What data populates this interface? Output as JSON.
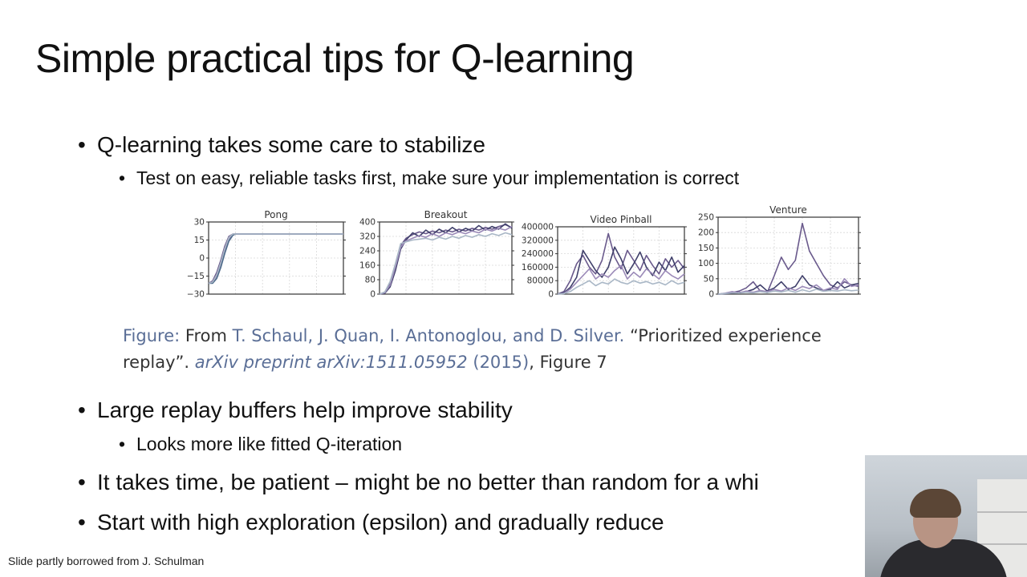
{
  "slide": {
    "title": "Simple practical tips for Q-learning",
    "bullet1": "Q-learning takes some care to stabilize",
    "bullet1_sub": "Test on easy, reliable tasks first, make sure your implementation is correct",
    "bullet2": "Large replay buffers help improve stability",
    "bullet2_sub": "Looks more like fitted Q-iteration",
    "bullet3": "It takes time, be patient – might be no better than random for a whi",
    "bullet4": "Start with high exploration (epsilon) and gradually reduce",
    "footer": "Slide partly borrowed from J. Schulman"
  },
  "caption": {
    "label": "Figure:",
    "from": "From",
    "authors": "T. Schaul, J. Quan, I. Antonoglou, and D. Silver.",
    "title_part1": "“Prioritized experience",
    "title_part2": "replay”.",
    "venue": "arXiv preprint arXiv:1511.05952",
    "year": "(2015)",
    "ref": ", Figure 7"
  },
  "chart_data": [
    {
      "type": "line",
      "title": "Pong",
      "ylim": [
        -30,
        30
      ],
      "yticks": [
        "30",
        "15",
        "0",
        "−15",
        "−30"
      ],
      "ytick_values": [
        30,
        15,
        0,
        -15,
        -30
      ],
      "x": [
        0,
        0.03,
        0.06,
        0.09,
        0.12,
        0.15,
        0.18,
        0.2,
        0.3,
        0.5,
        0.7,
        1.0
      ],
      "series": [
        {
          "color": "#6a5a8c",
          "values": [
            -21,
            -19,
            -12,
            -2,
            10,
            18,
            20,
            20,
            20,
            20,
            20,
            20
          ]
        },
        {
          "color": "#9b8ab8",
          "values": [
            -21,
            -20,
            -15,
            -5,
            7,
            16,
            19.5,
            20,
            20,
            20,
            20,
            20
          ]
        },
        {
          "color": "#4d6a8a",
          "values": [
            -21,
            -21,
            -17,
            -8,
            4,
            14,
            19,
            20,
            20,
            20,
            20,
            20
          ]
        },
        {
          "color": "#a9b7c6",
          "values": [
            -21,
            -20,
            -14,
            -4,
            8,
            17,
            20,
            20,
            20,
            20,
            20,
            20
          ]
        }
      ],
      "grid": true
    },
    {
      "type": "line",
      "title": "Breakout",
      "ylim": [
        0,
        400
      ],
      "yticks": [
        "400",
        "320",
        "240",
        "160",
        "80",
        "0"
      ],
      "ytick_values": [
        400,
        320,
        240,
        160,
        80,
        0
      ],
      "x": [
        0,
        0.04,
        0.08,
        0.12,
        0.16,
        0.2,
        0.25,
        0.3,
        0.35,
        0.4,
        0.45,
        0.5,
        0.55,
        0.6,
        0.65,
        0.7,
        0.75,
        0.8,
        0.85,
        0.9,
        0.95,
        1.0
      ],
      "series": [
        {
          "color": "#6a5a8c",
          "values": [
            0,
            10,
            60,
            160,
            270,
            310,
            330,
            345,
            335,
            350,
            340,
            355,
            345,
            360,
            350,
            365,
            355,
            370,
            360,
            375,
            385,
            370
          ]
        },
        {
          "color": "#3f3f6a",
          "values": [
            0,
            5,
            40,
            130,
            250,
            300,
            340,
            320,
            355,
            330,
            360,
            340,
            370,
            345,
            365,
            350,
            380,
            355,
            375,
            360,
            390,
            365
          ]
        },
        {
          "color": "#9b8ab8",
          "values": [
            0,
            8,
            50,
            150,
            260,
            295,
            310,
            325,
            315,
            335,
            320,
            340,
            330,
            345,
            335,
            350,
            340,
            360,
            350,
            365,
            355,
            375
          ]
        },
        {
          "color": "#a9b7c6",
          "values": [
            0,
            12,
            70,
            170,
            280,
            290,
            300,
            305,
            310,
            300,
            315,
            305,
            320,
            310,
            325,
            315,
            330,
            320,
            335,
            325,
            340,
            330
          ]
        }
      ],
      "grid": true
    },
    {
      "type": "line",
      "title": "Video Pinball",
      "ylim": [
        0,
        400000
      ],
      "yticks": [
        "400000",
        "320000",
        "240000",
        "160000",
        "80000",
        "0"
      ],
      "ytick_values": [
        400000,
        320000,
        240000,
        160000,
        80000,
        0
      ],
      "x": [
        0,
        0.05,
        0.1,
        0.15,
        0.2,
        0.25,
        0.3,
        0.35,
        0.4,
        0.45,
        0.5,
        0.55,
        0.6,
        0.65,
        0.7,
        0.75,
        0.8,
        0.85,
        0.9,
        0.95,
        1.0
      ],
      "series": [
        {
          "color": "#6a5a8c",
          "values": [
            0,
            15000,
            80000,
            180000,
            230000,
            160000,
            120000,
            200000,
            360000,
            220000,
            150000,
            260000,
            200000,
            140000,
            230000,
            170000,
            120000,
            210000,
            160000,
            200000,
            150000
          ]
        },
        {
          "color": "#3f3f6a",
          "values": [
            0,
            8000,
            40000,
            100000,
            260000,
            200000,
            140000,
            100000,
            160000,
            280000,
            210000,
            120000,
            180000,
            250000,
            160000,
            110000,
            190000,
            140000,
            220000,
            130000,
            170000
          ]
        },
        {
          "color": "#9b8ab8",
          "values": [
            0,
            5000,
            30000,
            70000,
            110000,
            150000,
            90000,
            120000,
            100000,
            140000,
            170000,
            90000,
            130000,
            100000,
            150000,
            120000,
            90000,
            140000,
            110000,
            90000,
            120000
          ]
        },
        {
          "color": "#a9b7c6",
          "values": [
            0,
            3000,
            15000,
            40000,
            60000,
            80000,
            50000,
            70000,
            60000,
            90000,
            70000,
            60000,
            80000,
            65000,
            75000,
            60000,
            70000,
            55000,
            80000,
            60000,
            70000
          ]
        }
      ],
      "grid": true
    },
    {
      "type": "line",
      "title": "Venture",
      "ylim": [
        0,
        250
      ],
      "yticks": [
        "250",
        "200",
        "150",
        "100",
        "50",
        "0"
      ],
      "ytick_values": [
        250,
        200,
        150,
        100,
        50,
        0
      ],
      "x": [
        0,
        0.05,
        0.1,
        0.15,
        0.2,
        0.25,
        0.3,
        0.35,
        0.4,
        0.45,
        0.5,
        0.55,
        0.6,
        0.65,
        0.7,
        0.75,
        0.8,
        0.85,
        0.9,
        0.95,
        1.0
      ],
      "series": [
        {
          "color": "#6a5a8c",
          "values": [
            0,
            2,
            5,
            10,
            20,
            40,
            10,
            5,
            60,
            120,
            80,
            110,
            230,
            140,
            100,
            60,
            30,
            20,
            40,
            30,
            25
          ]
        },
        {
          "color": "#3f3f6a",
          "values": [
            0,
            1,
            3,
            5,
            8,
            15,
            30,
            10,
            20,
            40,
            15,
            25,
            60,
            30,
            20,
            10,
            15,
            40,
            20,
            30,
            35
          ]
        },
        {
          "color": "#9b8ab8",
          "values": [
            0,
            3,
            8,
            4,
            10,
            6,
            12,
            8,
            15,
            10,
            20,
            12,
            25,
            18,
            30,
            12,
            20,
            15,
            50,
            25,
            30
          ]
        },
        {
          "color": "#a9b7c6",
          "values": [
            0,
            2,
            4,
            3,
            6,
            4,
            8,
            5,
            10,
            7,
            12,
            6,
            14,
            8,
            16,
            9,
            12,
            10,
            14,
            11,
            13
          ]
        }
      ],
      "grid": true
    }
  ]
}
